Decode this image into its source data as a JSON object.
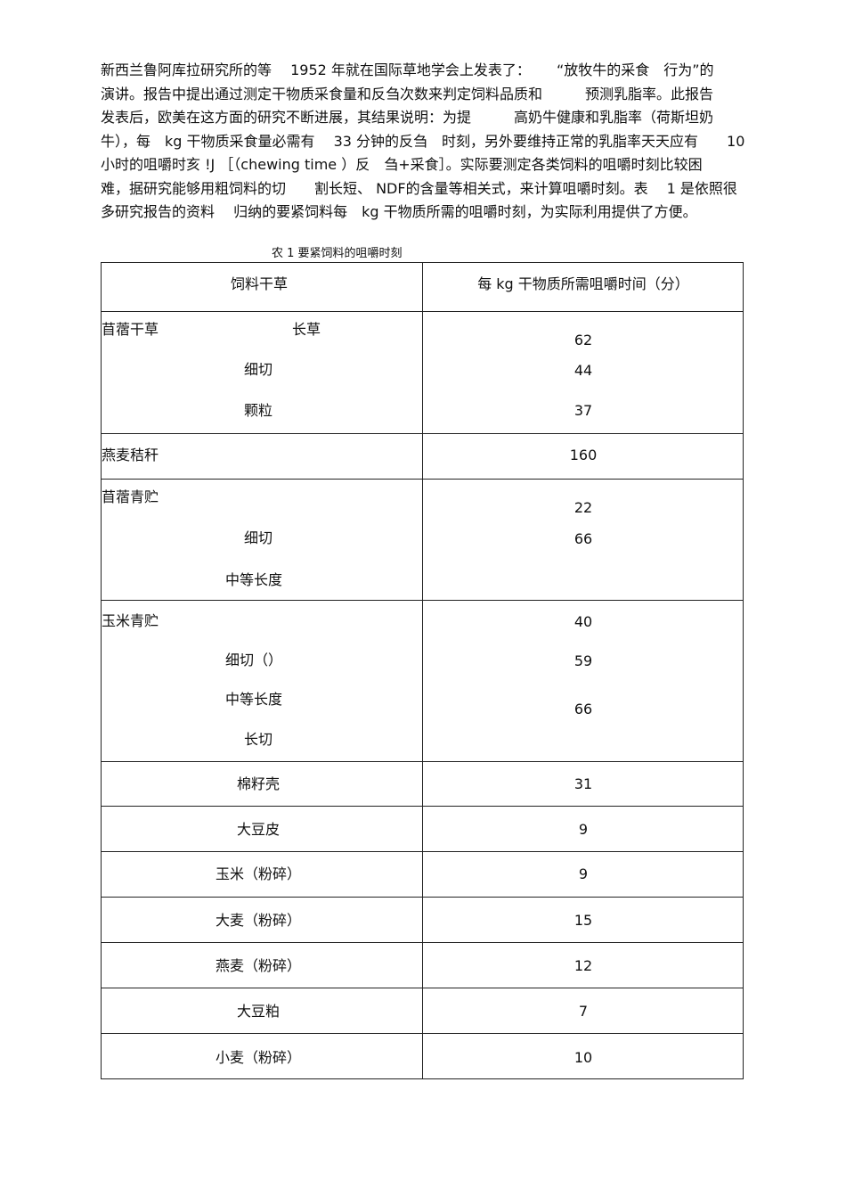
{
  "paragraph": [
    "新西兰鲁阿库拉研究所的等　 1952 年就在国际草地学会上发表了：　　 “放牧牛的采食　行为”的",
    "演讲。报告中提出通过测定干物质采食量和反刍次数来判定饲料品质和　　　预测乳脂率。此报告",
    "发表后，欧美在这方面的研究不断进展，其结果说明：为提　　　高奶牛健康和乳脂率（荷斯坦奶",
    "牛），每　kg 干物质采食量必需有　 33 分钟的反刍　时刻，另外要维持正常的乳脂率天天应有　　10",
    "小时的咀嚼时亥 !J ［（chewing time ）反　刍+采食］。实际要测定各类饲料的咀嚼时刻比较困",
    "难，据研究能够用粗饲料的切　　割长短、 NDF的含量等相关式，来计算咀嚼时刻。表　 1 是依照很",
    "多研究报告的资料　 归纳的要紧饲料每　kg 干物质所需的咀嚼时刻，为实际利用提供了方便。"
  ],
  "table": {
    "caption": "农 1 要紧饲料的咀嚼时刻",
    "headers": [
      "饲料干草",
      "每 kg 干物质所需咀嚼时间（分）"
    ],
    "group_rows": [
      {
        "name": "苜蓿干草",
        "subs": [
          "长草",
          "细切",
          "颗粒"
        ],
        "values": [
          "62",
          "44",
          "37"
        ]
      },
      {
        "name": "燕麦秸秆",
        "values": [
          "160"
        ]
      },
      {
        "name": "苜蓿青贮",
        "subs": [
          "细切",
          "中等长度"
        ],
        "values": [
          "22",
          "66"
        ]
      },
      {
        "name": "玉米青贮",
        "subs": [
          "细切（）",
          "中等长度",
          "长切"
        ],
        "values": [
          "40",
          "59",
          "66"
        ]
      }
    ],
    "rows": [
      {
        "name": "棉籽壳",
        "value": "31"
      },
      {
        "name": "大豆皮",
        "value": "9"
      },
      {
        "name": "玉米（粉碎）",
        "value": "9"
      },
      {
        "name": "大麦（粉碎）",
        "value": "15"
      },
      {
        "name": "燕麦（粉碎）",
        "value": "12"
      },
      {
        "name": "大豆粕",
        "value": "7"
      },
      {
        "name": "小麦（粉碎）",
        "value": "10"
      }
    ]
  }
}
